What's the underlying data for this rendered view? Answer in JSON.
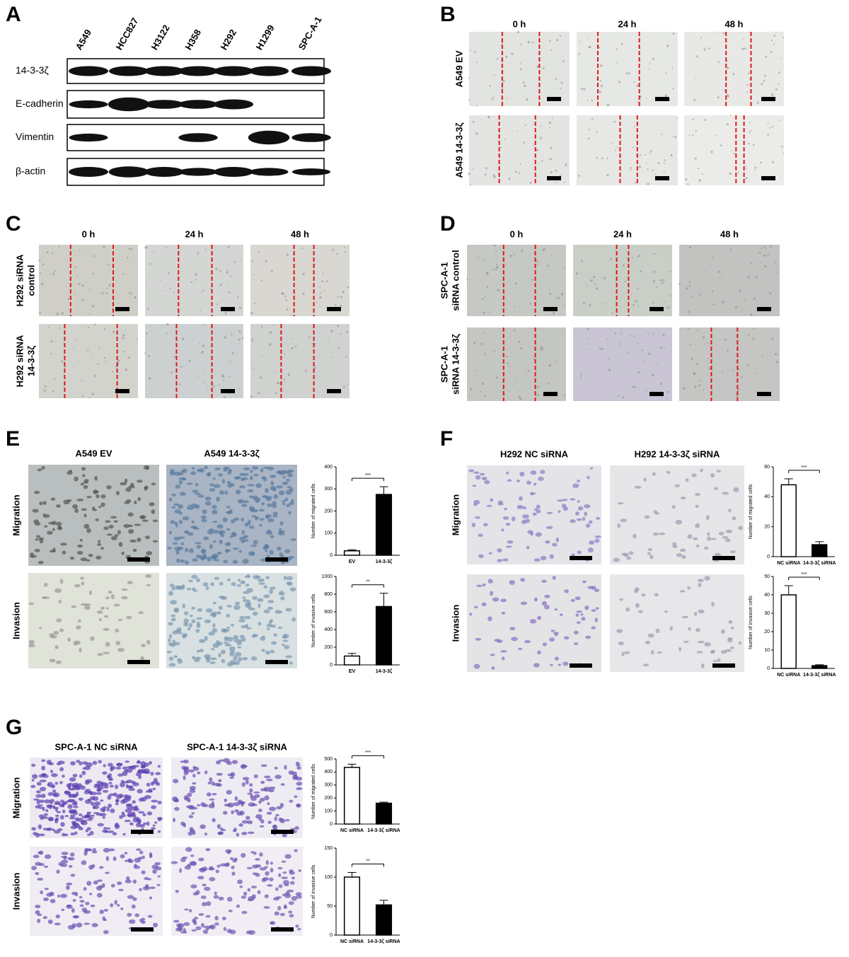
{
  "panel_a": {
    "label": "A",
    "lanes": [
      "A549",
      "HCC827",
      "H3122",
      "H358",
      "H292",
      "H1299",
      "SPC-A-1"
    ],
    "rows": [
      "14-3-3ζ",
      "E-cadherin",
      "Vimentin",
      "β-actin"
    ]
  },
  "panel_b": {
    "label": "B",
    "times": [
      "0 h",
      "24 h",
      "48 h"
    ],
    "rows": [
      [
        "A549 EV"
      ],
      [
        "A549 14-3-3ζ"
      ]
    ]
  },
  "panel_c": {
    "label": "C",
    "times": [
      "0 h",
      "24 h",
      "48 h"
    ],
    "rows": [
      [
        "H292 siRNA",
        "control"
      ],
      [
        "H292 siRNA",
        "14-3-3ζ"
      ]
    ]
  },
  "panel_d": {
    "label": "D",
    "times": [
      "0 h",
      "24 h",
      "48 h"
    ],
    "rows": [
      [
        "SPC-A-1",
        "siRNA control"
      ],
      [
        "SPC-A-1",
        "siRNA 14-3-3ζ"
      ]
    ]
  },
  "panel_e": {
    "label": "E",
    "columns": [
      "A549 EV",
      "A549 14-3-3ζ"
    ],
    "rows": [
      "Migration",
      "Invasion"
    ]
  },
  "panel_f": {
    "label": "F",
    "columns": [
      "H292 NC siRNA",
      "H292 14-3-3ζ siRNA"
    ],
    "rows": [
      "Migration",
      "Invasion"
    ]
  },
  "panel_g": {
    "label": "G",
    "columns": [
      "SPC-A-1 NC siRNA",
      "SPC-A-1 14-3-3ζ siRNA"
    ],
    "rows": [
      "Migration",
      "Invasion"
    ]
  },
  "chart_data": [
    {
      "type": "bar",
      "ylabel": "Number of migrated cells",
      "categories": [
        "EV",
        "14-3-3ζ"
      ],
      "values": [
        20,
        275
      ],
      "errors": [
        5,
        35
      ],
      "colors": [
        "#ffffff",
        "#000000"
      ],
      "ylim": [
        0,
        400
      ],
      "yticks": [
        0,
        100,
        200,
        300,
        400
      ],
      "significance": "***"
    },
    {
      "type": "bar",
      "ylabel": "Number of invasive cells",
      "categories": [
        "EV",
        "14-3-3ζ"
      ],
      "values": [
        100,
        660
      ],
      "errors": [
        30,
        150
      ],
      "colors": [
        "#ffffff",
        "#000000"
      ],
      "ylim": [
        0,
        1000
      ],
      "yticks": [
        0,
        200,
        400,
        600,
        800,
        1000
      ],
      "significance": "**"
    },
    {
      "type": "bar",
      "ylabel": "Number of migrated cells",
      "categories": [
        "NC siRNA",
        "14-3-3ζ siRNA"
      ],
      "values": [
        48,
        8
      ],
      "errors": [
        4,
        2
      ],
      "colors": [
        "#ffffff",
        "#000000"
      ],
      "ylim": [
        0,
        60
      ],
      "yticks": [
        0,
        20,
        40,
        60
      ],
      "significance": "***"
    },
    {
      "type": "bar",
      "ylabel": "Number of invasive cells",
      "categories": [
        "NC siRNA",
        "14-3-3ζ siRNA"
      ],
      "values": [
        40,
        1.5
      ],
      "errors": [
        5,
        0.5
      ],
      "colors": [
        "#ffffff",
        "#000000"
      ],
      "ylim": [
        0,
        50
      ],
      "yticks": [
        0,
        10,
        20,
        30,
        40,
        50
      ],
      "significance": "***"
    },
    {
      "type": "bar",
      "ylabel": "Number of migrated cells",
      "categories": [
        "NC siRNA",
        "14-3-3ζ siRNA"
      ],
      "values": [
        435,
        160
      ],
      "errors": [
        25,
        8
      ],
      "colors": [
        "#ffffff",
        "#000000"
      ],
      "ylim": [
        0,
        500
      ],
      "yticks": [
        0,
        100,
        200,
        300,
        400,
        500
      ],
      "significance": "***"
    },
    {
      "type": "bar",
      "ylabel": "Number of invasive cells",
      "categories": [
        "NC siRNA",
        "14-3-3ζ siRNA"
      ],
      "values": [
        100,
        52
      ],
      "errors": [
        8,
        8
      ],
      "colors": [
        "#ffffff",
        "#000000"
      ],
      "ylim": [
        0,
        150
      ],
      "yticks": [
        0,
        50,
        100,
        150
      ],
      "significance": "**"
    }
  ]
}
